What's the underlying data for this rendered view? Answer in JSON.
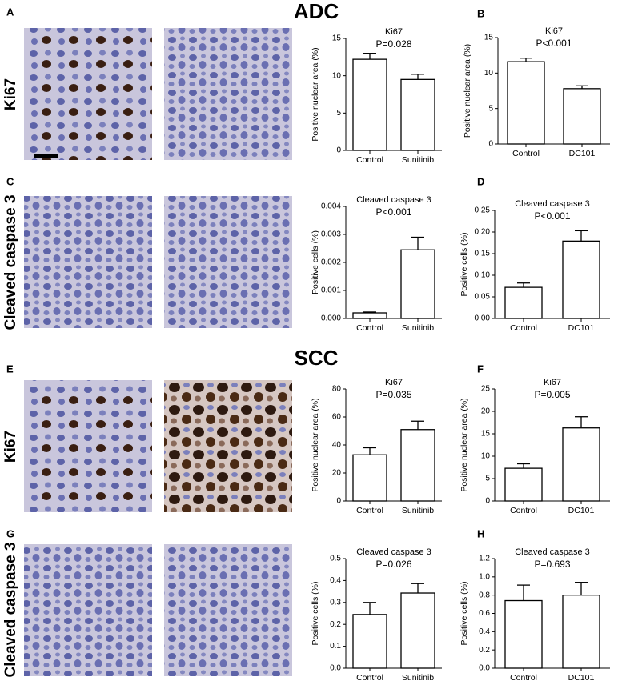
{
  "sections": [
    "ADC",
    "SCC"
  ],
  "row_labels": [
    "Ki67",
    "Cleaved caspase 3",
    "Ki67",
    "Cleaved caspase 3"
  ],
  "chart_data": [
    {
      "type": "bar",
      "panel": "A",
      "title": "Ki67",
      "subtitle": "P=0.028",
      "y_label": "Positive nuclear area (%)",
      "categories": [
        "Control",
        "Sunitinib"
      ],
      "values": [
        12.2,
        9.5
      ],
      "errors": [
        0.8,
        0.7
      ],
      "color": "#ffffff",
      "ylim": [
        0,
        15
      ],
      "yticks": [
        0,
        5,
        10,
        15
      ]
    },
    {
      "type": "bar",
      "panel": "B",
      "title": "Ki67",
      "subtitle": "P<0.001",
      "y_label": "Positive nuclear area (%)",
      "categories": [
        "Control",
        "DC101"
      ],
      "values": [
        11.6,
        7.8
      ],
      "errors": [
        0.5,
        0.4
      ],
      "color": "#ffffff",
      "ylim": [
        0,
        15
      ],
      "yticks": [
        0,
        5,
        10,
        15
      ]
    },
    {
      "type": "bar",
      "panel": "C",
      "title": "Cleaved caspase 3",
      "subtitle": "P<0.001",
      "y_label": "Positive cells (%)",
      "categories": [
        "Control",
        "Sunitinib"
      ],
      "values": [
        0.0002,
        0.00245
      ],
      "errors": [
        3e-05,
        0.00045
      ],
      "color": "#ffffff",
      "ylim": [
        0,
        0.004
      ],
      "yticks": [
        {
          "value": 0,
          "label": "0.000"
        },
        {
          "value": 0.001,
          "label": "0.001"
        },
        {
          "value": 0.002,
          "label": "0.002"
        },
        {
          "value": 0.003,
          "label": "0.003"
        },
        {
          "value": 0.004,
          "label": "0.004"
        }
      ]
    },
    {
      "type": "bar",
      "panel": "D",
      "title": "Cleaved caspase 3",
      "subtitle": "P<0.001",
      "y_label": "Positive cells (%)",
      "categories": [
        "Control",
        "DC101"
      ],
      "values": [
        0.072,
        0.179
      ],
      "errors": [
        0.01,
        0.024
      ],
      "color": "#ffffff",
      "ylim": [
        0,
        0.25
      ],
      "yticks": [
        {
          "value": 0,
          "label": "0.00"
        },
        {
          "value": 0.05,
          "label": "0.05"
        },
        {
          "value": 0.1,
          "label": "0.10"
        },
        {
          "value": 0.15,
          "label": "0.15"
        },
        {
          "value": 0.2,
          "label": "0.20"
        },
        {
          "value": 0.25,
          "label": "0.25"
        }
      ]
    },
    {
      "type": "bar",
      "panel": "E",
      "title": "Ki67",
      "subtitle": "P=0.035",
      "y_label": "Positive nuclear area (%)",
      "categories": [
        "Control",
        "Sunitinib"
      ],
      "values": [
        33,
        51
      ],
      "errors": [
        5,
        6
      ],
      "color": "#ffffff",
      "ylim": [
        0,
        80
      ],
      "yticks": [
        0,
        20,
        40,
        60,
        80
      ]
    },
    {
      "type": "bar",
      "panel": "F",
      "title": "Ki67",
      "subtitle": "P=0.005",
      "y_label": "Positive nuclear area (%)",
      "categories": [
        "Control",
        "DC101"
      ],
      "values": [
        7.3,
        16.3
      ],
      "errors": [
        1,
        2.5
      ],
      "color": "#ffffff",
      "ylim": [
        0,
        25
      ],
      "yticks": [
        0,
        5,
        10,
        15,
        20,
        25
      ]
    },
    {
      "type": "bar",
      "panel": "G",
      "title": "Cleaved caspase 3",
      "subtitle": "P=0.026",
      "y_label": "Positive cells (%)",
      "categories": [
        "Control",
        "Sunitinib"
      ],
      "values": [
        0.245,
        0.343
      ],
      "errors": [
        0.055,
        0.043
      ],
      "color": "#ffffff",
      "ylim": [
        0,
        0.5
      ],
      "yticks": [
        {
          "value": 0,
          "label": "0.0"
        },
        {
          "value": 0.1,
          "label": "0.1"
        },
        {
          "value": 0.2,
          "label": "0.2"
        },
        {
          "value": 0.3,
          "label": "0.3"
        },
        {
          "value": 0.4,
          "label": "0.4"
        },
        {
          "value": 0.5,
          "label": "0.5"
        }
      ]
    },
    {
      "type": "bar",
      "panel": "H",
      "title": "Cleaved caspase 3",
      "subtitle": "P=0.693",
      "y_label": "Positive cells (%)",
      "categories": [
        "Control",
        "DC101"
      ],
      "values": [
        0.74,
        0.8
      ],
      "errors": [
        0.17,
        0.14
      ],
      "color": "#ffffff",
      "ylim": [
        0,
        1.2
      ],
      "yticks": [
        {
          "value": 0,
          "label": "0.0"
        },
        {
          "value": 0.2,
          "label": "0.2"
        },
        {
          "value": 0.4,
          "label": "0.4"
        },
        {
          "value": 0.6,
          "label": "0.6"
        },
        {
          "value": 0.8,
          "label": "0.8"
        },
        {
          "value": 1,
          "label": "1.0"
        },
        {
          "value": 1.2,
          "label": "1.2"
        }
      ]
    }
  ]
}
